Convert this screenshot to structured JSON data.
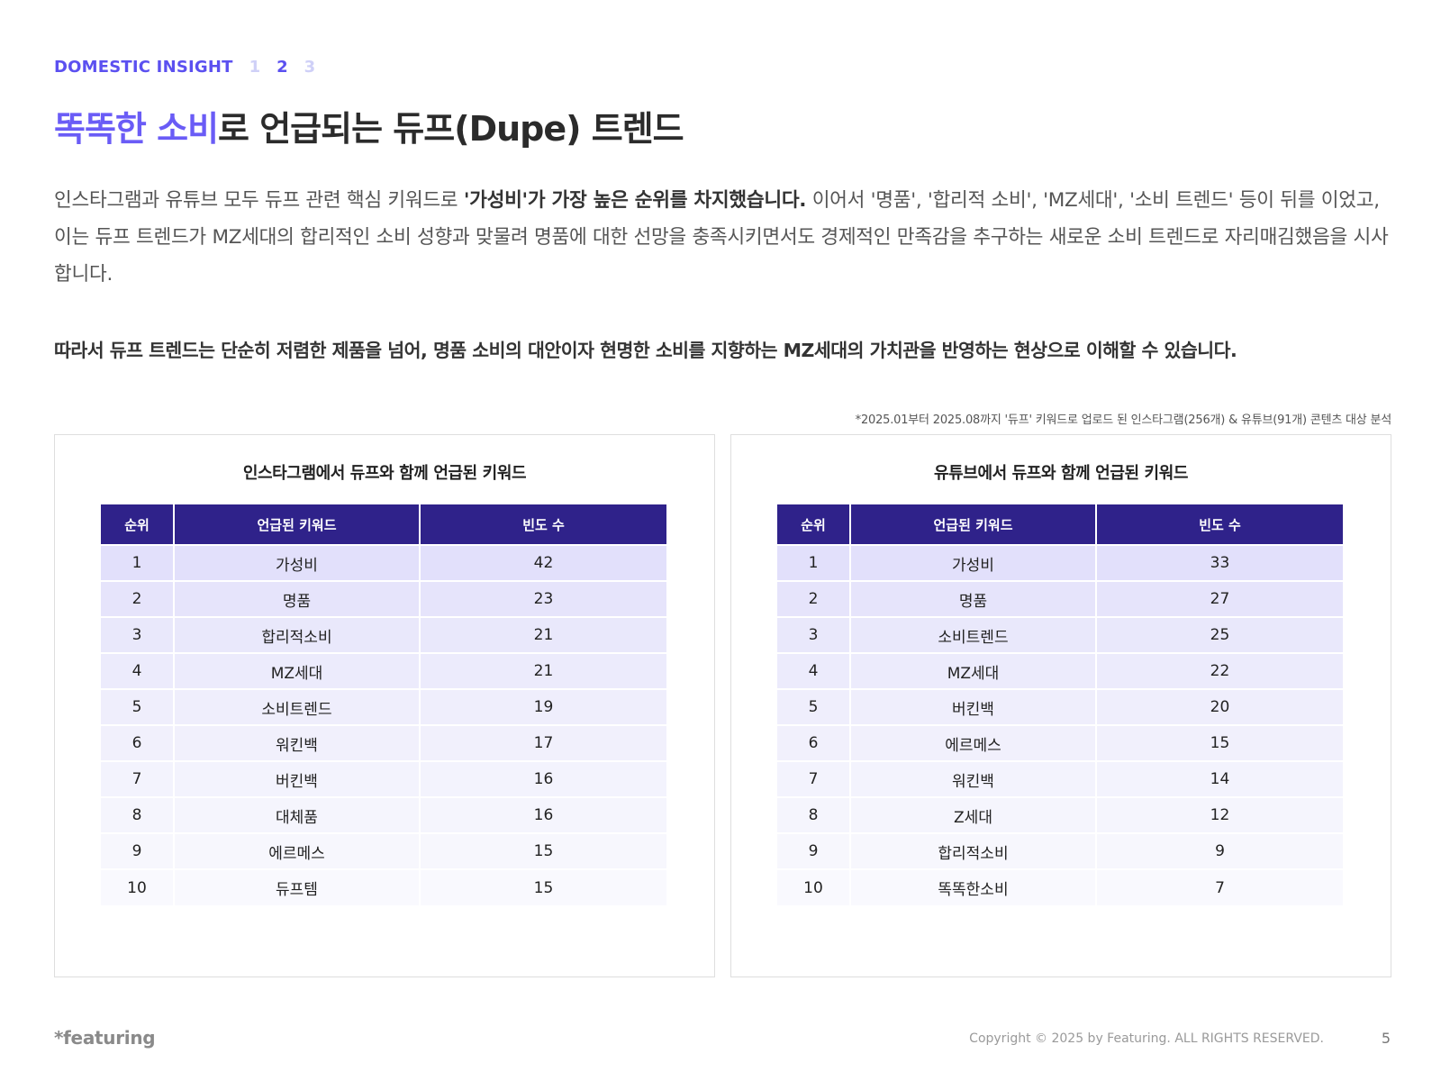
{
  "header": {
    "section_label": "DOMESTIC INSIGHT",
    "page_numbers": [
      "1",
      "2",
      "3"
    ]
  },
  "title": {
    "highlight": "똑똑한 소비",
    "rest": "로 언급되는 듀프(Dupe) 트렌드"
  },
  "paragraph": {
    "part1": "인스타그램과 유튜브 모두 듀프 관련 핵심 키워드로 ",
    "bold": "'가성비'가 가장 높은 순위를 차지했습니다.",
    "part2": " 이어서 '명품', '합리적 소비', 'MZ세대', '소비 트렌드' 등이 뒤를 이었고, 이는 듀프 트렌드가 MZ세대의 합리적인 소비 성향과 맞물려 명품에 대한 선망을 충족시키면서도 경제적인 만족감을 추구하는 새로운 소비 트렌드로 자리매김했음을 시사합니다."
  },
  "conclusion": "따라서 듀프 트렌드는 단순히 저렴한 제품을 넘어, 명품 소비의 대안이자 현명한 소비를 지향하는 MZ세대의 가치관을 반영하는 현상으로 이해할 수 있습니다.",
  "footnote": "*2025.01부터 2025.08까지 '듀프' 키워드로 업로드 된 인스타그램(256개) & 유튜브(91개) 콘텐츠 대상 분석",
  "table_columns": [
    "순위",
    "언급된 키워드",
    "빈도 수"
  ],
  "row_colors": [
    "#e2e0fb",
    "#e6e4fb",
    "#e9e8fb",
    "#ecebfc",
    "#efeefc",
    "#f1f0fc",
    "#f3f3fd",
    "#f5f5fd",
    "#f7f7fd",
    "#f9f9fe"
  ],
  "instagram": {
    "title": "인스타그램에서 듀프와 함께 언급된 키워드",
    "rows": [
      {
        "rank": "1",
        "keyword": "가성비",
        "count": "42"
      },
      {
        "rank": "2",
        "keyword": "명품",
        "count": "23"
      },
      {
        "rank": "3",
        "keyword": "합리적소비",
        "count": "21"
      },
      {
        "rank": "4",
        "keyword": "MZ세대",
        "count": "21"
      },
      {
        "rank": "5",
        "keyword": "소비트렌드",
        "count": "19"
      },
      {
        "rank": "6",
        "keyword": "워킨백",
        "count": "17"
      },
      {
        "rank": "7",
        "keyword": "버킨백",
        "count": "16"
      },
      {
        "rank": "8",
        "keyword": "대체품",
        "count": "16"
      },
      {
        "rank": "9",
        "keyword": "에르메스",
        "count": "15"
      },
      {
        "rank": "10",
        "keyword": "듀프템",
        "count": "15"
      }
    ]
  },
  "youtube": {
    "title": "유튜브에서 듀프와 함께 언급된 키워드",
    "rows": [
      {
        "rank": "1",
        "keyword": "가성비",
        "count": "33"
      },
      {
        "rank": "2",
        "keyword": "명품",
        "count": "27"
      },
      {
        "rank": "3",
        "keyword": "소비트렌드",
        "count": "25"
      },
      {
        "rank": "4",
        "keyword": "MZ세대",
        "count": "22"
      },
      {
        "rank": "5",
        "keyword": "버킨백",
        "count": "20"
      },
      {
        "rank": "6",
        "keyword": "에르메스",
        "count": "15"
      },
      {
        "rank": "7",
        "keyword": "워킨백",
        "count": "14"
      },
      {
        "rank": "8",
        "keyword": "Z세대",
        "count": "12"
      },
      {
        "rank": "9",
        "keyword": "합리적소비",
        "count": "9"
      },
      {
        "rank": "10",
        "keyword": "똑똑한소비",
        "count": "7"
      }
    ]
  },
  "footer": {
    "logo": "*featuring",
    "copyright": "Copyright © 2025 by Featuring. ALL RIGHTS RESERVED.",
    "page": "5"
  }
}
